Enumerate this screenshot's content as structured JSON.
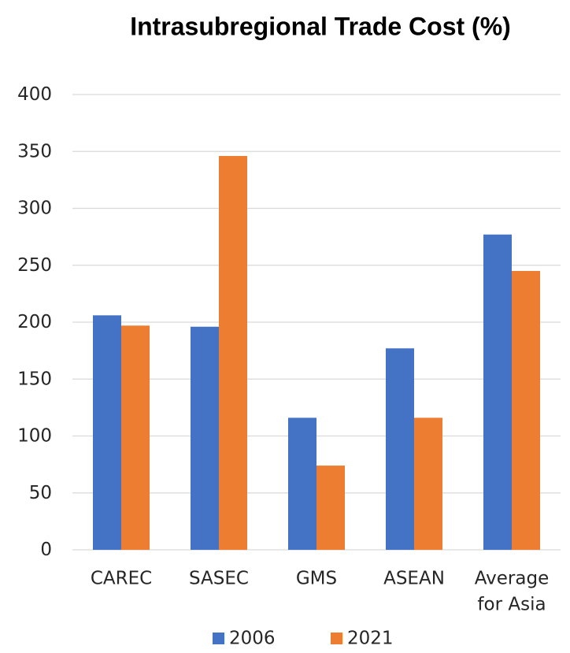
{
  "chart_data": {
    "type": "bar",
    "title": "Intrasubregional Trade Cost (%)",
    "xlabel": "",
    "ylabel": "",
    "categories": [
      [
        "CAREC"
      ],
      [
        "SASEC"
      ],
      [
        "GMS"
      ],
      [
        "ASEAN"
      ],
      [
        "Average",
        "for Asia"
      ]
    ],
    "series": [
      {
        "name": "2006",
        "color": "#4472c4",
        "values": [
          206,
          196,
          116,
          177,
          277
        ]
      },
      {
        "name": "2021",
        "color": "#ed7d31",
        "values": [
          197,
          346,
          74,
          116,
          245
        ]
      }
    ],
    "ylim": [
      0,
      400
    ],
    "yticks": [
      "0",
      "50",
      "100",
      "150",
      "200",
      "250",
      "300",
      "350",
      "400"
    ],
    "grid": true,
    "legend_position": "bottom"
  }
}
